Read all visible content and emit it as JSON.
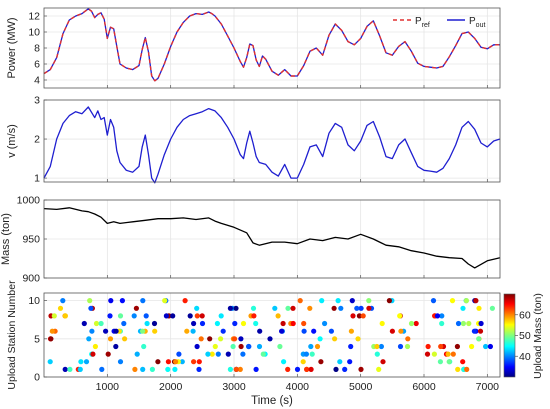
{
  "chart_data": [
    {
      "type": "line",
      "ylabel": "Power (MW)",
      "xlim": [
        0,
        7200
      ],
      "ylim": [
        3,
        13
      ],
      "yticks": [
        "4",
        "6",
        "8",
        "10",
        "12"
      ],
      "grid": true,
      "legend_position": "top-right",
      "legend": [
        {
          "base": "P",
          "sub": "ref",
          "color": "#e03030",
          "style": "dashed"
        },
        {
          "base": "P",
          "sub": "out",
          "color": "#1f1fd0",
          "style": "solid"
        }
      ],
      "series": [
        {
          "name": "P_ref",
          "color": "#e03030",
          "x": [
            0,
            100,
            200,
            300,
            400,
            500,
            600,
            700,
            750,
            800,
            850,
            900,
            950,
            1000,
            1050,
            1100,
            1150,
            1200,
            1300,
            1400,
            1500,
            1550,
            1600,
            1650,
            1700,
            1750,
            1800,
            1900,
            2000,
            2100,
            2200,
            2300,
            2400,
            2500,
            2600,
            2650,
            2700,
            2800,
            2900,
            3000,
            3100,
            3150,
            3200,
            3250,
            3300,
            3350,
            3400,
            3450,
            3500,
            3600,
            3700,
            3800,
            3900,
            4000,
            4100,
            4200,
            4300,
            4400,
            4500,
            4600,
            4700,
            4800,
            4900,
            5000,
            5100,
            5200,
            5300,
            5400,
            5500,
            5600,
            5700,
            5800,
            5900,
            6000,
            6100,
            6200,
            6300,
            6400,
            6500,
            6600,
            6700,
            6800,
            6900,
            7000,
            7100,
            7200
          ],
          "values": [
            4.8,
            5.3,
            6.8,
            9.8,
            11.5,
            12.0,
            12.3,
            12.9,
            12.6,
            11.8,
            12.2,
            12.4,
            11.6,
            9.2,
            10.6,
            10.4,
            8.2,
            6.0,
            5.5,
            5.3,
            5.8,
            7.8,
            9.3,
            7.5,
            4.5,
            3.9,
            4.2,
            6.0,
            8.2,
            10.0,
            11.2,
            12.0,
            12.3,
            12.2,
            12.5,
            12.3,
            12.0,
            11.0,
            9.5,
            8.0,
            6.3,
            5.6,
            6.8,
            8.5,
            8.3,
            6.5,
            5.7,
            7.0,
            6.6,
            5.1,
            4.6,
            5.3,
            4.5,
            4.5,
            5.8,
            7.6,
            8.0,
            7.1,
            9.6,
            11.0,
            10.2,
            8.8,
            8.4,
            9.2,
            10.7,
            11.4,
            9.5,
            7.4,
            7.1,
            8.2,
            8.8,
            7.6,
            6.1,
            5.7,
            5.6,
            5.5,
            5.7,
            6.9,
            8.3,
            9.8,
            10.0,
            9.2,
            8.1,
            7.9,
            8.4,
            8.4
          ]
        },
        {
          "name": "P_out",
          "color": "#1f1fd0",
          "x": [
            0,
            100,
            200,
            300,
            400,
            500,
            600,
            700,
            750,
            800,
            850,
            900,
            950,
            1000,
            1050,
            1100,
            1150,
            1200,
            1300,
            1400,
            1500,
            1550,
            1600,
            1650,
            1700,
            1750,
            1800,
            1900,
            2000,
            2100,
            2200,
            2300,
            2400,
            2500,
            2600,
            2650,
            2700,
            2800,
            2900,
            3000,
            3100,
            3150,
            3200,
            3250,
            3300,
            3350,
            3400,
            3450,
            3500,
            3600,
            3700,
            3800,
            3900,
            4000,
            4100,
            4200,
            4300,
            4400,
            4500,
            4600,
            4700,
            4800,
            4900,
            5000,
            5100,
            5200,
            5300,
            5400,
            5500,
            5600,
            5700,
            5800,
            5900,
            6000,
            6100,
            6200,
            6300,
            6400,
            6500,
            6600,
            6700,
            6800,
            6900,
            7000,
            7100,
            7200
          ],
          "values": [
            4.8,
            5.3,
            6.8,
            9.8,
            11.5,
            12.0,
            12.3,
            12.9,
            12.6,
            11.8,
            12.2,
            12.4,
            11.6,
            9.2,
            10.6,
            10.4,
            8.2,
            6.0,
            5.5,
            5.3,
            5.8,
            7.8,
            9.3,
            7.5,
            4.5,
            3.9,
            4.2,
            6.0,
            8.2,
            10.0,
            11.2,
            12.0,
            12.3,
            12.2,
            12.5,
            12.3,
            12.0,
            11.0,
            9.5,
            8.0,
            6.3,
            5.6,
            6.8,
            8.5,
            8.3,
            6.5,
            5.7,
            7.0,
            6.6,
            5.1,
            4.6,
            5.3,
            4.5,
            4.5,
            5.8,
            7.6,
            8.0,
            7.1,
            9.6,
            11.0,
            10.2,
            8.8,
            8.4,
            9.2,
            10.7,
            11.4,
            9.5,
            7.4,
            7.1,
            8.2,
            8.8,
            7.6,
            6.1,
            5.7,
            5.6,
            5.5,
            5.7,
            6.9,
            8.3,
            9.8,
            10.0,
            9.2,
            8.1,
            7.9,
            8.4,
            8.4
          ]
        }
      ]
    },
    {
      "type": "line",
      "ylabel": "v (m/s)",
      "xlim": [
        0,
        7200
      ],
      "ylim": [
        0.9,
        3.0
      ],
      "yticks": [
        "1",
        "2",
        "3"
      ],
      "grid": true,
      "series": [
        {
          "color": "#1f1fd0",
          "x": [
            0,
            100,
            200,
            300,
            400,
            500,
            600,
            700,
            800,
            850,
            900,
            950,
            1000,
            1050,
            1100,
            1150,
            1200,
            1300,
            1400,
            1500,
            1550,
            1600,
            1650,
            1700,
            1750,
            1800,
            1900,
            2000,
            2100,
            2200,
            2300,
            2400,
            2500,
            2600,
            2700,
            2800,
            2900,
            3000,
            3100,
            3150,
            3200,
            3250,
            3300,
            3350,
            3400,
            3500,
            3600,
            3700,
            3800,
            3900,
            4000,
            4100,
            4200,
            4300,
            4400,
            4500,
            4600,
            4700,
            4800,
            4900,
            5000,
            5100,
            5200,
            5300,
            5400,
            5500,
            5600,
            5700,
            5800,
            5900,
            6000,
            6100,
            6200,
            6300,
            6400,
            6500,
            6600,
            6700,
            6800,
            6900,
            7000,
            7100,
            7200
          ],
          "values": [
            1.0,
            1.3,
            2.0,
            2.4,
            2.6,
            2.7,
            2.65,
            2.82,
            2.55,
            2.72,
            2.5,
            2.55,
            2.1,
            2.5,
            2.3,
            1.7,
            1.4,
            1.2,
            1.15,
            1.3,
            1.8,
            2.1,
            1.6,
            1.0,
            0.88,
            1.1,
            1.6,
            2.0,
            2.3,
            2.5,
            2.6,
            2.65,
            2.7,
            2.78,
            2.72,
            2.55,
            2.3,
            2.0,
            1.6,
            1.5,
            1.9,
            2.2,
            1.9,
            1.55,
            1.4,
            1.35,
            1.15,
            1.05,
            1.35,
            1.0,
            1.0,
            1.35,
            1.8,
            1.85,
            1.55,
            2.15,
            2.4,
            2.3,
            1.85,
            1.7,
            1.95,
            2.35,
            2.45,
            2.05,
            1.55,
            1.5,
            1.85,
            2.0,
            1.65,
            1.3,
            1.2,
            1.18,
            1.15,
            1.25,
            1.5,
            1.85,
            2.3,
            2.45,
            2.25,
            1.9,
            1.8,
            1.95,
            2.0
          ]
        }
      ]
    },
    {
      "type": "line",
      "ylabel": "Mass (ton)",
      "xlim": [
        0,
        7200
      ],
      "ylim": [
        900,
        1000
      ],
      "yticks": [
        "900",
        "950",
        "1000"
      ],
      "grid": true,
      "series": [
        {
          "color": "#000000",
          "x": [
            0,
            200,
            400,
            600,
            700,
            800,
            900,
            1000,
            1100,
            1200,
            1400,
            1600,
            1800,
            2000,
            2200,
            2400,
            2600,
            2700,
            2800,
            3000,
            3200,
            3300,
            3400,
            3600,
            3800,
            4000,
            4200,
            4400,
            4600,
            4800,
            5000,
            5200,
            5400,
            5600,
            5800,
            6000,
            6200,
            6400,
            6600,
            6700,
            6800,
            7000,
            7200
          ],
          "values": [
            989,
            988,
            990,
            986,
            985,
            982,
            978,
            970,
            972,
            970,
            972,
            974,
            976,
            976,
            977,
            975,
            977,
            973,
            970,
            965,
            958,
            945,
            942,
            946,
            946,
            944,
            950,
            948,
            952,
            950,
            956,
            950,
            942,
            940,
            935,
            932,
            928,
            926,
            925,
            918,
            913,
            922,
            926
          ]
        }
      ]
    },
    {
      "type": "scatter",
      "ylabel": "Upload Station Number",
      "xlabel": "Time (s)",
      "xlim": [
        0,
        7200
      ],
      "ylim": [
        0,
        11
      ],
      "xticks": [
        "1000",
        "2000",
        "3000",
        "4000",
        "5000",
        "6000",
        "7000"
      ],
      "yticks": [
        "0",
        "5",
        "10"
      ],
      "grid": true,
      "colorbar": {
        "label": "Upload Mass (ton)",
        "range": [
          30,
          70
        ],
        "ticks": [
          "40",
          "50",
          "60"
        ],
        "colormap": "jet"
      },
      "points_note": "station 1-10, upload mass 30-70 ton"
    }
  ]
}
